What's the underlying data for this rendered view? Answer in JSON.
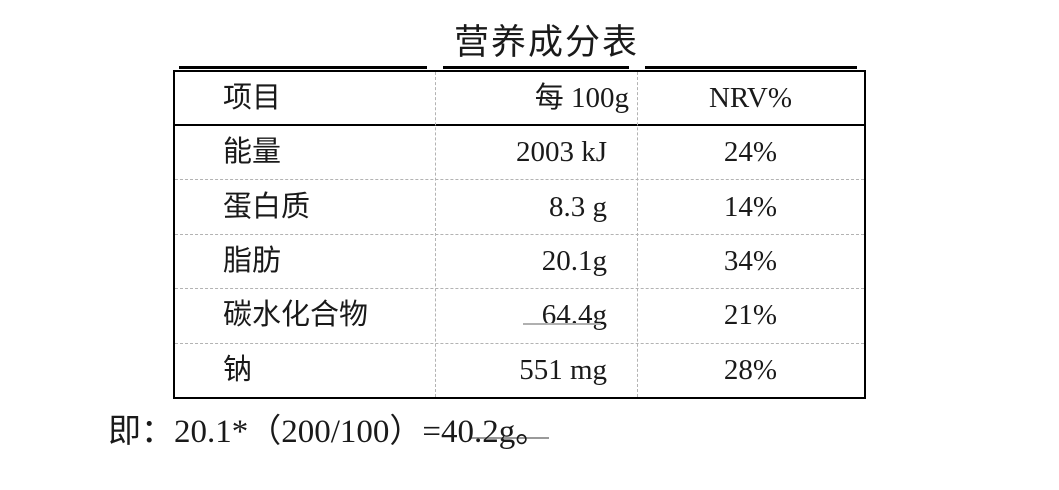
{
  "title": "营养成分表",
  "table": {
    "headers": [
      "项目",
      "每 100g",
      "NRV%"
    ],
    "rows": [
      {
        "item": "能量",
        "per100g": "2003 kJ",
        "nrv": "24%"
      },
      {
        "item": "蛋白质",
        "per100g": "8.3 g",
        "nrv": "14%"
      },
      {
        "item": "脂肪",
        "per100g": "20.1g",
        "nrv": "34%"
      },
      {
        "item": "碳水化合物",
        "per100g": "64.4g",
        "nrv": "21%"
      },
      {
        "item": "钠",
        "per100g": "551 mg",
        "nrv": "28%"
      }
    ]
  },
  "note": "即：20.1*（200/100）=40.2g。",
  "colors": {
    "text": "#1a1a1a",
    "table_border": "#000000",
    "dashed_divider": "#b3b3b3",
    "background": "#ffffff"
  }
}
